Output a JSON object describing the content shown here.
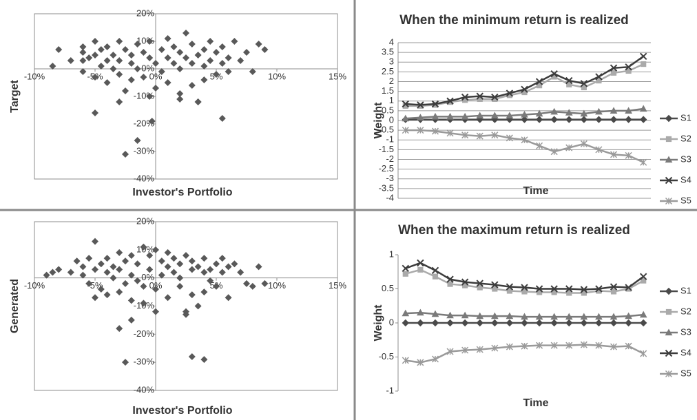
{
  "chart_data": [
    {
      "type": "scatter",
      "ylabel": "Target",
      "xlabel": "Investor's Portfolio",
      "color": "#595959",
      "x": [
        -8,
        -8.5,
        -7,
        -6,
        -6,
        -6,
        -6,
        -5.5,
        -5,
        -5,
        -5,
        -4.5,
        -4.5,
        -4,
        -4,
        -4,
        -3.5,
        -3.5,
        -3,
        -3,
        -3,
        -2.5,
        -2.5,
        -2,
        -2,
        -2,
        -1.5,
        -1.5,
        -1,
        -1,
        -0.5,
        -0.5,
        0,
        0,
        0.5,
        0.5,
        1,
        1,
        1,
        1.5,
        1.5,
        2,
        2,
        2,
        2.5,
        2.5,
        3,
        3,
        3,
        3.5,
        3.5,
        4,
        4,
        4,
        4.5,
        4.5,
        5,
        5,
        5.5,
        5.5,
        6,
        6,
        6.5,
        7,
        7.5,
        8,
        8.5,
        9,
        -5,
        -3,
        -0.3,
        -1.5,
        -2.5,
        5.5,
        3.5,
        -0.5,
        2
      ],
      "values": [
        7,
        1,
        3,
        8,
        6,
        3,
        -1,
        4,
        10,
        5,
        -3,
        7,
        1,
        3,
        -5,
        8,
        5,
        0,
        10,
        3,
        -2,
        7,
        -8,
        5,
        2,
        -4,
        9,
        0,
        6,
        -3,
        4,
        10,
        2,
        -7,
        7,
        -1,
        4,
        11,
        -5,
        2,
        8,
        6,
        -9,
        0,
        4,
        13,
        2,
        -6,
        9,
        5,
        -12,
        7,
        1,
        -4,
        3,
        10,
        6,
        -2,
        2,
        8,
        4,
        -1,
        10,
        3,
        6,
        -1,
        9,
        7,
        -16,
        -12,
        -19,
        -26,
        -31,
        -18,
        -12,
        -10,
        -11
      ],
      "xlim": [
        -10,
        15
      ],
      "ylim": [
        -40,
        20
      ],
      "xticks": [
        {
          "value": -10,
          "label": "-10%"
        },
        {
          "value": -5,
          "label": "-5%"
        },
        {
          "value": 0,
          "label": "0%"
        },
        {
          "value": 5,
          "label": "5%"
        },
        {
          "value": 10,
          "label": "10%"
        },
        {
          "value": 15,
          "label": "15%"
        }
      ],
      "yticks": [
        {
          "value": -40,
          "label": "-40%"
        },
        {
          "value": -30,
          "label": "-30%"
        },
        {
          "value": -20,
          "label": "-20%"
        },
        {
          "value": -10,
          "label": "-10%"
        },
        {
          "value": 0,
          "label": "0%"
        },
        {
          "value": 10,
          "label": "10%"
        },
        {
          "value": 20,
          "label": "20%"
        }
      ]
    },
    {
      "type": "scatter",
      "ylabel": "Generated",
      "xlabel": "Investor's Portfolio",
      "color": "#595959",
      "x": [
        -9,
        -8.5,
        -8,
        -7,
        -6.5,
        -6,
        -6,
        -5.5,
        -5.5,
        -5,
        -5,
        -4.5,
        -4.5,
        -4,
        -4,
        -4,
        -3.5,
        -3.5,
        -3,
        -3,
        -3,
        -2.5,
        -2.5,
        -2,
        -2,
        -2,
        -1.5,
        -1.5,
        -1,
        -1,
        -0.5,
        -0.5,
        0,
        0,
        0.5,
        0.5,
        1,
        1,
        1,
        1.5,
        1.5,
        2,
        2,
        2,
        2.5,
        2.5,
        3,
        3,
        3,
        3.5,
        3.5,
        4,
        4,
        4,
        4.5,
        4.5,
        5,
        5,
        5.5,
        5.5,
        6,
        6,
        6.5,
        7,
        7.5,
        8,
        8.5,
        9,
        -5,
        -3,
        -2,
        -2.5,
        3,
        4,
        0,
        -1,
        2.5
      ],
      "values": [
        1,
        2,
        3,
        2,
        6,
        4,
        1,
        7,
        -2,
        13,
        3,
        5,
        -4,
        7,
        2,
        -6,
        4,
        0,
        9,
        3,
        -5,
        6,
        -2,
        8,
        1,
        -8,
        5,
        -1,
        11,
        -3,
        3,
        8,
        10,
        -4,
        6,
        1,
        4,
        9,
        -7,
        2,
        7,
        5,
        -3,
        0,
        8,
        -12,
        3,
        -6,
        6,
        4,
        -10,
        7,
        2,
        -5,
        3,
        -1,
        5,
        -3,
        2,
        7,
        4,
        -7,
        5,
        2,
        -2,
        -3,
        4,
        -2,
        -7,
        -18,
        -15,
        -30,
        -28,
        -29,
        -12,
        -9,
        -13
      ],
      "xlim": [
        -10,
        15
      ],
      "ylim": [
        -40,
        20
      ],
      "xticks": [
        {
          "value": -10,
          "label": "-10%"
        },
        {
          "value": -5,
          "label": "-5%"
        },
        {
          "value": 0,
          "label": "0%"
        },
        {
          "value": 5,
          "label": "5%"
        },
        {
          "value": 10,
          "label": "10%"
        },
        {
          "value": 15,
          "label": "15%"
        }
      ],
      "yticks": [
        {
          "value": -40,
          "label": "-40%"
        },
        {
          "value": -30,
          "label": "-30%"
        },
        {
          "value": -20,
          "label": "-20%"
        },
        {
          "value": -10,
          "label": "-10%"
        },
        {
          "value": 0,
          "label": "0%"
        },
        {
          "value": 10,
          "label": "10%"
        },
        {
          "value": 20,
          "label": "20%"
        }
      ]
    },
    {
      "type": "line",
      "title": "When the minimum return is realized",
      "ylabel": "Weight",
      "xlabel": "Time",
      "grid": true,
      "categories": [
        null,
        null,
        null,
        null,
        null,
        null,
        null,
        null,
        null,
        null,
        null,
        null,
        null,
        null,
        null,
        null,
        null
      ],
      "ylim": [
        -4,
        4
      ],
      "yticks": [
        -4,
        -3.5,
        -3,
        -2.5,
        -2,
        -1.5,
        -1,
        -0.5,
        0,
        0.5,
        1,
        1.5,
        2,
        2.5,
        3,
        3.5,
        4
      ],
      "series": [
        {
          "name": "S1",
          "color": "#4a4a4a",
          "marker": "diamond",
          "values": [
            0.05,
            0.05,
            0.05,
            0.05,
            0.05,
            0.05,
            0.05,
            0.05,
            0.05,
            0.05,
            0.05,
            0.05,
            0.05,
            0.05,
            0.05,
            0.05,
            0.05
          ]
        },
        {
          "name": "S2",
          "color": "#aaaaaa",
          "marker": "square",
          "values": [
            0.75,
            0.75,
            0.8,
            0.95,
            1.05,
            1.1,
            1.1,
            1.3,
            1.45,
            1.8,
            2.25,
            1.85,
            1.7,
            2.05,
            2.45,
            2.55,
            2.9
          ]
        },
        {
          "name": "S3",
          "color": "#7a7a7a",
          "marker": "triangle",
          "values": [
            0.1,
            0.15,
            0.2,
            0.2,
            0.2,
            0.25,
            0.25,
            0.25,
            0.3,
            0.35,
            0.45,
            0.4,
            0.35,
            0.45,
            0.5,
            0.5,
            0.6
          ]
        },
        {
          "name": "S4",
          "color": "#3c3c3c",
          "marker": "x",
          "values": [
            0.85,
            0.8,
            0.85,
            1.0,
            1.2,
            1.25,
            1.2,
            1.4,
            1.6,
            2.0,
            2.4,
            2.05,
            1.9,
            2.25,
            2.7,
            2.75,
            3.3
          ]
        },
        {
          "name": "S5",
          "color": "#9a9a9a",
          "marker": "star",
          "values": [
            -0.5,
            -0.5,
            -0.55,
            -0.65,
            -0.75,
            -0.8,
            -0.75,
            -0.9,
            -1.0,
            -1.3,
            -1.6,
            -1.4,
            -1.2,
            -1.5,
            -1.75,
            -1.8,
            -2.15
          ]
        }
      ]
    },
    {
      "type": "line",
      "title": "When the maximum return is realized",
      "ylabel": "Weight",
      "xlabel": "Time",
      "grid": false,
      "categories": [
        null,
        null,
        null,
        null,
        null,
        null,
        null,
        null,
        null,
        null,
        null,
        null,
        null,
        null,
        null,
        null,
        null
      ],
      "ylim": [
        -1,
        1
      ],
      "yticks": [
        -1,
        -0.5,
        0,
        0.5,
        1
      ],
      "series": [
        {
          "name": "S1",
          "color": "#4a4a4a",
          "marker": "diamond",
          "values": [
            0,
            0,
            0,
            0,
            0,
            0,
            0,
            0,
            0,
            0,
            0,
            0,
            0,
            0,
            0,
            0,
            0
          ]
        },
        {
          "name": "S2",
          "color": "#aaaaaa",
          "marker": "square",
          "values": [
            0.72,
            0.78,
            0.68,
            0.57,
            0.55,
            0.52,
            0.5,
            0.47,
            0.46,
            0.45,
            0.45,
            0.44,
            0.44,
            0.47,
            0.46,
            0.5,
            0.62
          ]
        },
        {
          "name": "S3",
          "color": "#7a7a7a",
          "marker": "triangle",
          "values": [
            0.14,
            0.15,
            0.13,
            0.11,
            0.11,
            0.1,
            0.1,
            0.1,
            0.09,
            0.09,
            0.09,
            0.09,
            0.09,
            0.09,
            0.09,
            0.1,
            0.12
          ]
        },
        {
          "name": "S4",
          "color": "#3c3c3c",
          "marker": "x",
          "values": [
            0.8,
            0.88,
            0.77,
            0.64,
            0.6,
            0.58,
            0.56,
            0.53,
            0.52,
            0.5,
            0.5,
            0.5,
            0.49,
            0.5,
            0.53,
            0.52,
            0.68
          ]
        },
        {
          "name": "S5",
          "color": "#9a9a9a",
          "marker": "star",
          "values": [
            -0.55,
            -0.58,
            -0.53,
            -0.42,
            -0.4,
            -0.39,
            -0.37,
            -0.35,
            -0.34,
            -0.33,
            -0.33,
            -0.33,
            -0.32,
            -0.33,
            -0.35,
            -0.34,
            -0.45
          ]
        }
      ]
    }
  ]
}
